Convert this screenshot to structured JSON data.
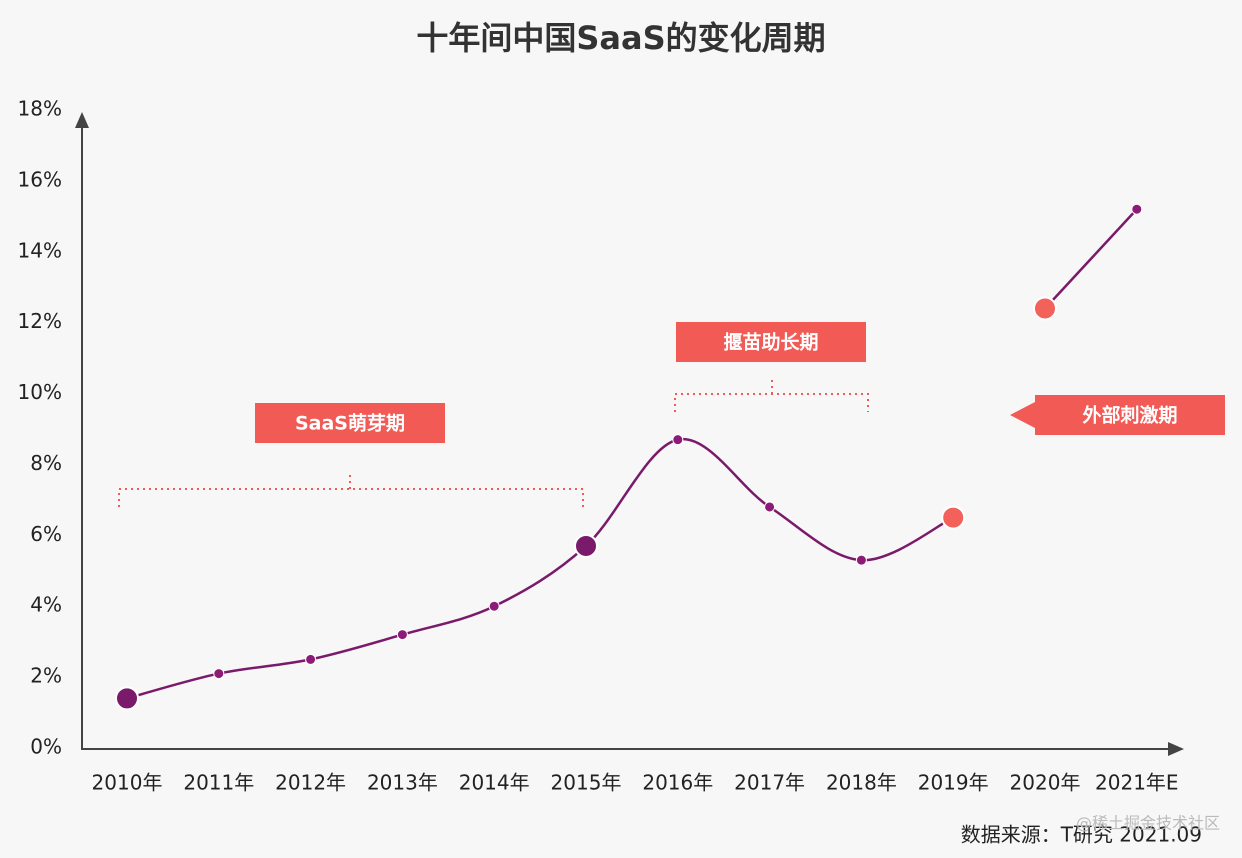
{
  "chart_data": {
    "type": "line",
    "title": "十年间中国SaaS的变化周期",
    "categories": [
      "2010年",
      "2011年",
      "2012年",
      "2013年",
      "2014年",
      "2015年",
      "2016年",
      "2017年",
      "2018年",
      "2019年",
      "2020年",
      "2021年E"
    ],
    "series": [
      {
        "color": "#7a1a6a",
        "values": [
          1.4,
          2.1,
          2.5,
          3.2,
          4.0,
          5.7,
          8.7,
          6.8,
          5.3,
          6.5,
          null,
          null
        ]
      },
      {
        "color": "#7a1a6a",
        "values": [
          null,
          null,
          null,
          null,
          null,
          null,
          null,
          null,
          null,
          null,
          12.4,
          15.2
        ]
      }
    ],
    "marker_colors": [
      "#7a1a6a",
      "#8e1a78",
      "#8e1a78",
      "#8e1a78",
      "#8e1a78",
      "#7a1a6a",
      "#8e1a78",
      "#8e1a78",
      "#8e1a78",
      "#f2615a",
      "#f2615a",
      "#8e1a78"
    ],
    "large_markers": [
      true,
      false,
      false,
      false,
      false,
      true,
      false,
      false,
      false,
      true,
      true,
      false
    ],
    "ylim": [
      0,
      18
    ],
    "yticks": [
      {
        "value": 0,
        "label": "0%"
      },
      {
        "value": 2,
        "label": "2%"
      },
      {
        "value": 4,
        "label": "4%"
      },
      {
        "value": 6,
        "label": "6%"
      },
      {
        "value": 8,
        "label": "8%"
      },
      {
        "value": 10,
        "label": "10%"
      },
      {
        "value": 12,
        "label": "12%"
      },
      {
        "value": 14,
        "label": "14%"
      },
      {
        "value": 16,
        "label": "16%"
      },
      {
        "value": 18,
        "label": "18%"
      }
    ],
    "grid": false,
    "annotations": [
      "SaaS萌芽期",
      "揠苗助长期",
      "外部刺激期"
    ],
    "source": "数据来源：T研究 2021.09",
    "watermark": "@稀土掘金技术社区"
  }
}
